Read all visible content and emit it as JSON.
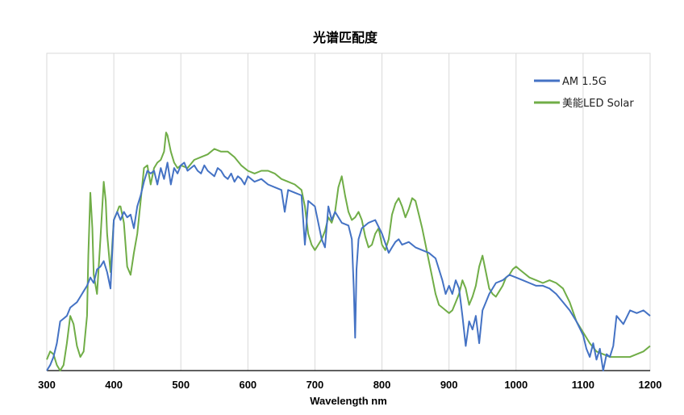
{
  "chart_data": {
    "type": "line",
    "title": "光谱匹配度",
    "xlabel": "Wavelength nm",
    "ylabel": "",
    "xlim": [
      300,
      1200
    ],
    "ylim": [
      0,
      1
    ],
    "x_ticks": [
      300,
      400,
      500,
      600,
      700,
      800,
      900,
      1000,
      1100,
      1200
    ],
    "y_ticks_shown": false,
    "grid": "vertical",
    "legend_position": "top-right",
    "series": [
      {
        "name": "AM 1.5G",
        "color": "#4472C4",
        "x": [
          300,
          305,
          310,
          315,
          320,
          325,
          330,
          335,
          340,
          345,
          350,
          355,
          360,
          365,
          370,
          375,
          380,
          385,
          390,
          395,
          400,
          405,
          410,
          415,
          420,
          425,
          430,
          435,
          440,
          445,
          450,
          455,
          460,
          465,
          470,
          475,
          480,
          485,
          490,
          495,
          500,
          505,
          510,
          515,
          520,
          525,
          530,
          535,
          540,
          545,
          550,
          555,
          560,
          565,
          570,
          575,
          580,
          585,
          590,
          595,
          600,
          610,
          620,
          630,
          640,
          650,
          655,
          660,
          670,
          680,
          685,
          687,
          690,
          700,
          710,
          715,
          720,
          725,
          730,
          740,
          750,
          755,
          758,
          760,
          762,
          765,
          770,
          780,
          790,
          800,
          810,
          815,
          820,
          825,
          830,
          840,
          850,
          860,
          870,
          880,
          890,
          895,
          900,
          905,
          910,
          915,
          920,
          925,
          930,
          935,
          940,
          945,
          950,
          955,
          960,
          970,
          980,
          990,
          1000,
          1010,
          1020,
          1030,
          1040,
          1050,
          1060,
          1070,
          1080,
          1090,
          1100,
          1105,
          1110,
          1115,
          1120,
          1125,
          1130,
          1135,
          1140,
          1145,
          1150,
          1160,
          1170,
          1180,
          1190,
          1200
        ],
        "y": [
          0.0,
          0.02,
          0.05,
          0.1,
          0.18,
          0.19,
          0.2,
          0.23,
          0.24,
          0.25,
          0.27,
          0.29,
          0.31,
          0.34,
          0.32,
          0.37,
          0.38,
          0.4,
          0.36,
          0.3,
          0.55,
          0.58,
          0.55,
          0.58,
          0.56,
          0.57,
          0.52,
          0.6,
          0.64,
          0.69,
          0.73,
          0.72,
          0.73,
          0.68,
          0.74,
          0.7,
          0.76,
          0.68,
          0.74,
          0.72,
          0.75,
          0.76,
          0.73,
          0.74,
          0.75,
          0.73,
          0.72,
          0.75,
          0.73,
          0.72,
          0.71,
          0.74,
          0.73,
          0.71,
          0.7,
          0.72,
          0.69,
          0.71,
          0.7,
          0.68,
          0.71,
          0.69,
          0.7,
          0.68,
          0.67,
          0.66,
          0.58,
          0.66,
          0.65,
          0.64,
          0.46,
          0.52,
          0.62,
          0.6,
          0.48,
          0.45,
          0.6,
          0.55,
          0.58,
          0.54,
          0.53,
          0.48,
          0.3,
          0.12,
          0.37,
          0.48,
          0.52,
          0.54,
          0.55,
          0.5,
          0.43,
          0.45,
          0.47,
          0.48,
          0.46,
          0.47,
          0.45,
          0.44,
          0.43,
          0.41,
          0.33,
          0.28,
          0.31,
          0.28,
          0.33,
          0.3,
          0.2,
          0.09,
          0.18,
          0.15,
          0.2,
          0.1,
          0.22,
          0.25,
          0.28,
          0.32,
          0.33,
          0.35,
          0.34,
          0.33,
          0.32,
          0.31,
          0.31,
          0.3,
          0.28,
          0.25,
          0.22,
          0.18,
          0.13,
          0.08,
          0.05,
          0.1,
          0.04,
          0.08,
          0.0,
          0.06,
          0.05,
          0.09,
          0.2,
          0.17,
          0.22,
          0.21,
          0.22,
          0.2
        ]
      },
      {
        "name": "美能LED Solar",
        "color": "#70AD47",
        "x": [
          300,
          305,
          310,
          315,
          320,
          325,
          330,
          335,
          340,
          345,
          350,
          355,
          360,
          362,
          365,
          368,
          370,
          375,
          380,
          385,
          388,
          390,
          395,
          400,
          405,
          408,
          410,
          415,
          420,
          425,
          430,
          435,
          440,
          445,
          450,
          455,
          460,
          465,
          470,
          475,
          478,
          480,
          485,
          490,
          495,
          500,
          510,
          520,
          530,
          540,
          550,
          560,
          570,
          580,
          590,
          600,
          610,
          620,
          630,
          640,
          650,
          660,
          670,
          680,
          685,
          690,
          695,
          700,
          705,
          710,
          715,
          720,
          725,
          730,
          735,
          740,
          745,
          750,
          755,
          760,
          765,
          770,
          775,
          780,
          785,
          790,
          795,
          800,
          805,
          810,
          815,
          820,
          825,
          830,
          835,
          840,
          845,
          850,
          855,
          860,
          865,
          870,
          875,
          880,
          885,
          890,
          895,
          900,
          905,
          910,
          915,
          920,
          925,
          930,
          935,
          940,
          945,
          950,
          955,
          960,
          965,
          970,
          975,
          980,
          985,
          990,
          995,
          1000,
          1005,
          1010,
          1020,
          1030,
          1040,
          1050,
          1060,
          1070,
          1080,
          1090,
          1100,
          1110,
          1120,
          1130,
          1140,
          1150,
          1160,
          1170,
          1180,
          1190,
          1200
        ],
        "y": [
          0.04,
          0.07,
          0.06,
          0.02,
          0.0,
          0.02,
          0.1,
          0.2,
          0.17,
          0.09,
          0.05,
          0.07,
          0.2,
          0.42,
          0.65,
          0.52,
          0.35,
          0.28,
          0.48,
          0.69,
          0.62,
          0.5,
          0.36,
          0.55,
          0.58,
          0.6,
          0.6,
          0.54,
          0.38,
          0.35,
          0.43,
          0.5,
          0.62,
          0.74,
          0.75,
          0.68,
          0.74,
          0.76,
          0.77,
          0.8,
          0.87,
          0.86,
          0.8,
          0.76,
          0.74,
          0.75,
          0.74,
          0.77,
          0.78,
          0.79,
          0.81,
          0.8,
          0.8,
          0.78,
          0.75,
          0.73,
          0.72,
          0.73,
          0.73,
          0.72,
          0.7,
          0.69,
          0.68,
          0.66,
          0.6,
          0.5,
          0.46,
          0.44,
          0.46,
          0.48,
          0.51,
          0.56,
          0.54,
          0.58,
          0.67,
          0.71,
          0.64,
          0.58,
          0.55,
          0.56,
          0.58,
          0.55,
          0.49,
          0.45,
          0.46,
          0.5,
          0.52,
          0.46,
          0.44,
          0.48,
          0.57,
          0.61,
          0.63,
          0.6,
          0.56,
          0.59,
          0.63,
          0.62,
          0.57,
          0.52,
          0.46,
          0.4,
          0.34,
          0.28,
          0.24,
          0.23,
          0.22,
          0.21,
          0.22,
          0.25,
          0.28,
          0.33,
          0.3,
          0.24,
          0.27,
          0.31,
          0.38,
          0.42,
          0.36,
          0.3,
          0.28,
          0.27,
          0.29,
          0.31,
          0.34,
          0.35,
          0.37,
          0.38,
          0.37,
          0.36,
          0.34,
          0.33,
          0.32,
          0.33,
          0.32,
          0.3,
          0.25,
          0.18,
          0.14,
          0.1,
          0.07,
          0.06,
          0.05,
          0.05,
          0.05,
          0.05,
          0.06,
          0.07,
          0.09
        ]
      }
    ]
  }
}
